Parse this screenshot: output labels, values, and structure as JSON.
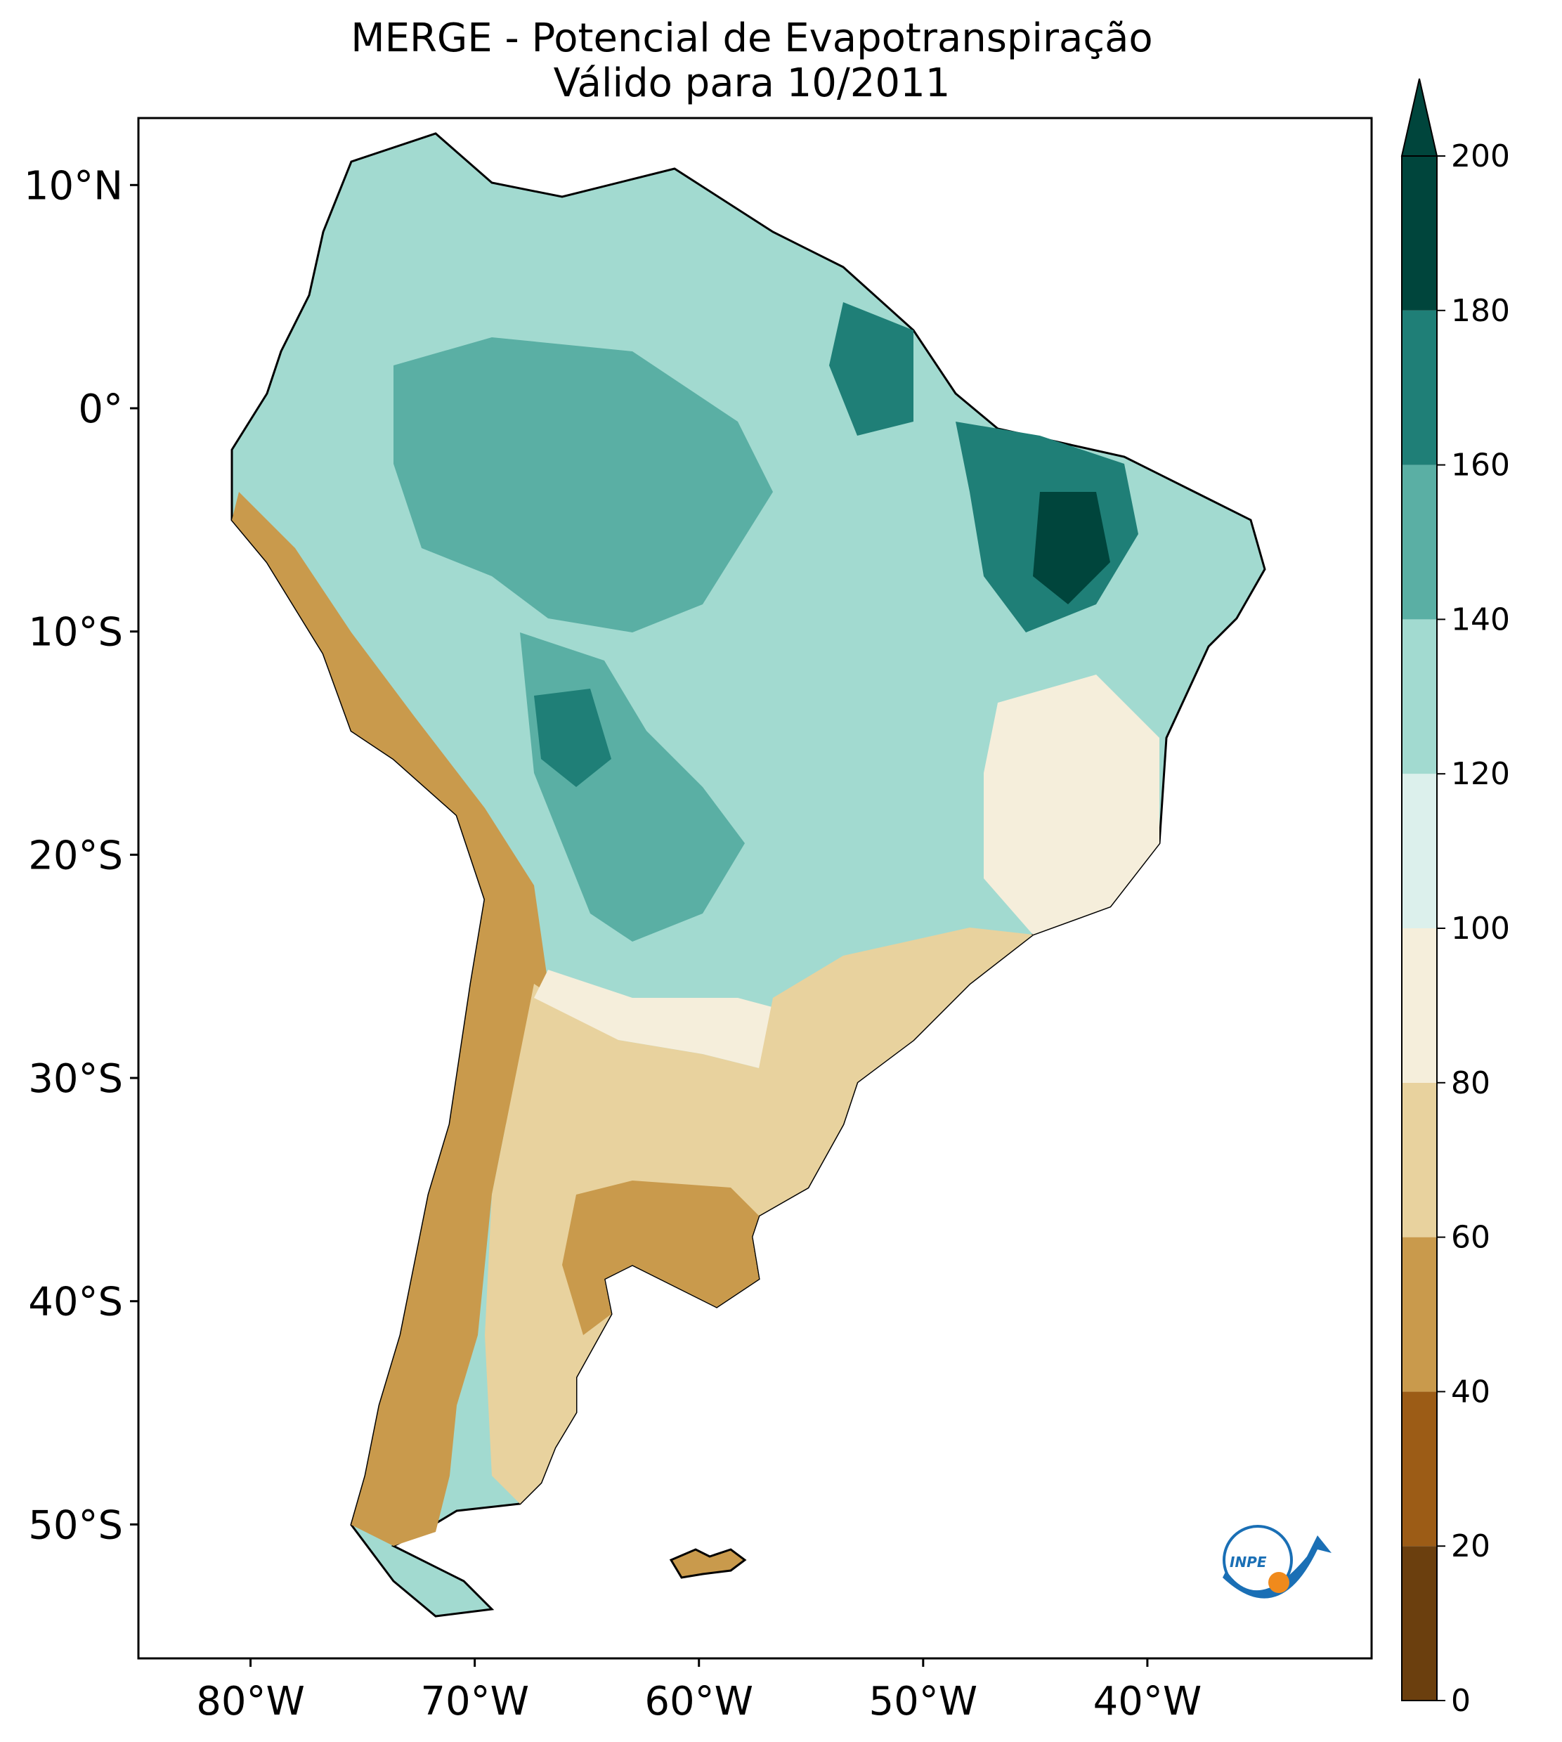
{
  "title": {
    "line1": "MERGE - Potencial de Evapotranspiração",
    "line2": "Válido para 10/2011"
  },
  "map": {
    "lat_labels": [
      "10°N",
      "0°",
      "10°S",
      "20°S",
      "30°S",
      "40°S",
      "50°S"
    ],
    "lon_labels": [
      "80°W",
      "70°W",
      "60°W",
      "50°W",
      "40°W"
    ],
    "extent": {
      "lon_min": -85,
      "lon_max": -30,
      "lat_min": -56,
      "lat_max": 13
    }
  },
  "colorbar": {
    "ticks": [
      "0",
      "20",
      "40",
      "60",
      "80",
      "100",
      "120",
      "140",
      "160",
      "180",
      "200"
    ],
    "levels": [
      0,
      20,
      40,
      60,
      80,
      100,
      120,
      140,
      160,
      180,
      200
    ],
    "colors": [
      "#6b3f0e",
      "#9c5c16",
      "#c99a4c",
      "#e8d29e",
      "#f5eedb",
      "#dcf0ec",
      "#a2dad0",
      "#5aafa4",
      "#1f7f77",
      "#00453c"
    ],
    "extend": "max"
  },
  "logo": {
    "text": "INPE"
  },
  "colors": {
    "land_fill": "#a2dad0",
    "south_dry": "#c99a4c",
    "background": "#ffffff"
  }
}
